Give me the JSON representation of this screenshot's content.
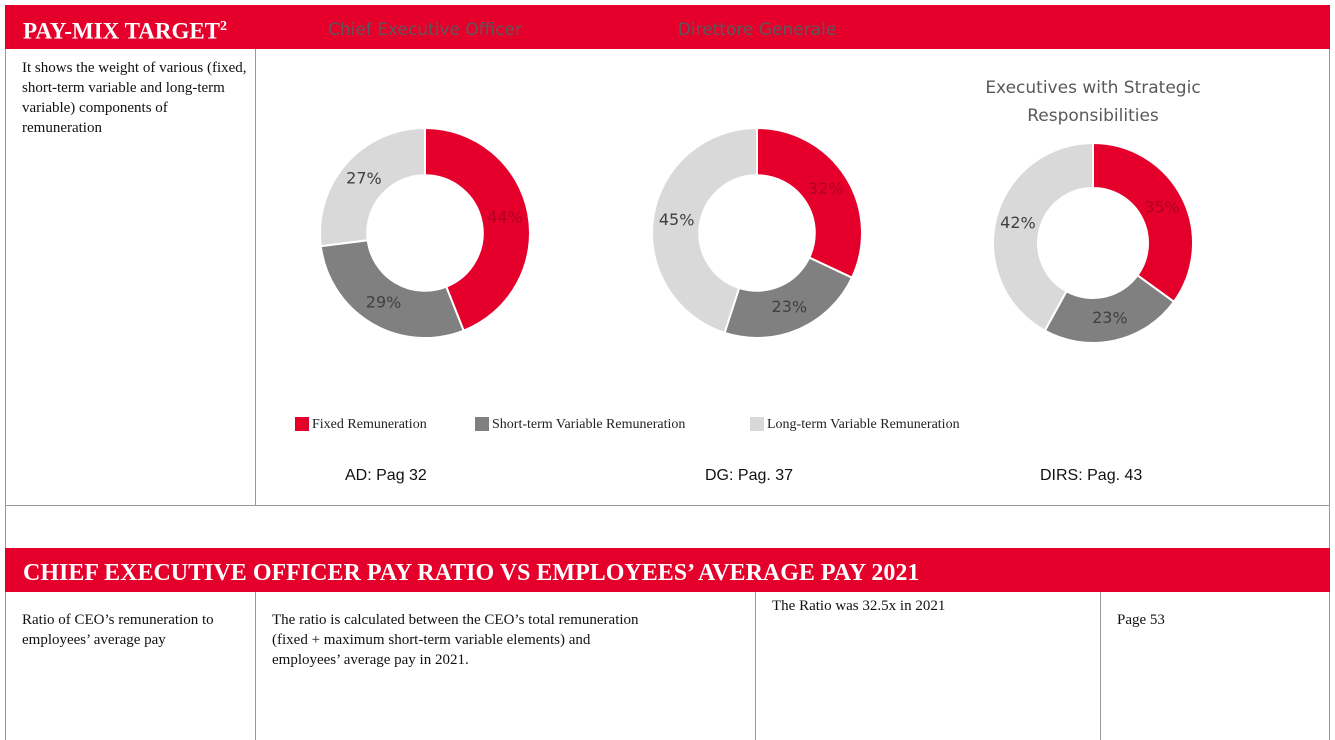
{
  "section1": {
    "title": "PAY-MIX TARGET",
    "title_sup": "2",
    "description": "It shows the weight of various (fixed, short-term variable and long-term variable) components of remuneration",
    "references": [
      "AD: Pag 32",
      "DG: Pag. 37",
      "DIRS: Pag. 43"
    ]
  },
  "chart_data": [
    {
      "type": "pie",
      "title": "Chief Executive Officer",
      "categories": [
        "Fixed Remuneration",
        "Short-term Variable Remuneration",
        "Long-term Variable Remuneration"
      ],
      "values": [
        44,
        29,
        27
      ],
      "colors": [
        "#e4002b",
        "#808080",
        "#d9d9d9"
      ]
    },
    {
      "type": "pie",
      "title": "Direttore Generale",
      "categories": [
        "Fixed Remuneration",
        "Short-term Variable Remuneration",
        "Long-term Variable Remuneration"
      ],
      "values": [
        32,
        23,
        45
      ],
      "colors": [
        "#e4002b",
        "#808080",
        "#d9d9d9"
      ]
    },
    {
      "type": "pie",
      "title": "Executives with Strategic Responsibilities",
      "categories": [
        "Fixed Remuneration",
        "Short-term Variable Remuneration",
        "Long-term Variable Remuneration"
      ],
      "values": [
        35,
        23,
        42
      ],
      "colors": [
        "#e4002b",
        "#808080",
        "#d9d9d9"
      ]
    }
  ],
  "section2": {
    "title": "CHIEF EXECUTIVE OFFICER PAY RATIO VS EMPLOYEES’ AVERAGE PAY 2021",
    "cells": [
      "Ratio of CEO’s remuneration to employees’ average pay",
      "The ratio is calculated between the CEO’s total remuneration (fixed + maximum short-term variable elements) and employees’ average pay in 2021.",
      "The Ratio was 32.5x in 2021",
      "Page 53"
    ]
  }
}
